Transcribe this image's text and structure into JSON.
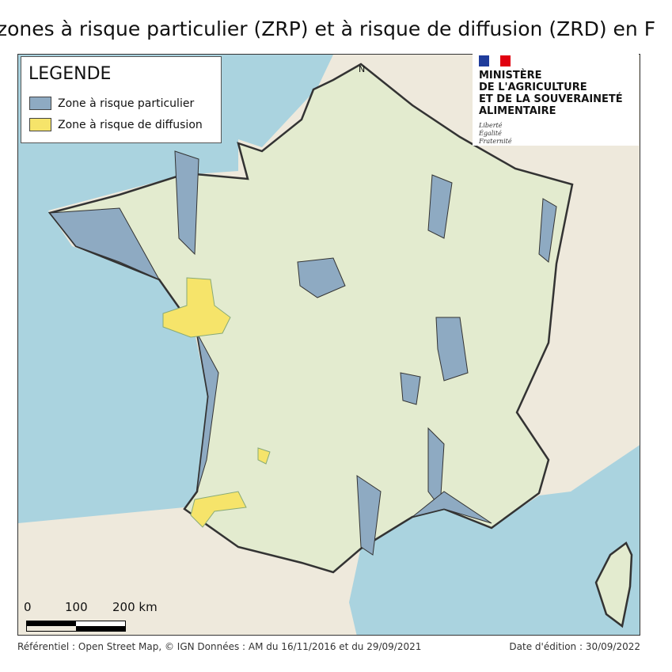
{
  "title": "zones à risque particulier (ZRP) et à risque de diffusion (ZRD) en F",
  "legend": {
    "title": "LEGENDE",
    "items": [
      {
        "label": "Zone à risque particulier",
        "color": "#8eaac2"
      },
      {
        "label": "Zone à risque de diffusion",
        "color": "#f6e46a"
      }
    ]
  },
  "north_label": "N",
  "logo": {
    "lines": [
      "MINISTÈRE",
      "DE L'AGRICULTURE",
      "ET DE LA SOUVERAINETÉ",
      "ALIMENTAIRE"
    ],
    "motto": [
      "Liberté",
      "Égalité",
      "Fraternité"
    ]
  },
  "scale": {
    "labels": [
      "0",
      "100",
      "200 km"
    ]
  },
  "footer": {
    "source": "Référentiel : Open Street Map, © IGN  Données : AM du 16/11/2016 et du 29/09/2021",
    "date": "Date d'édition : 30/09/2022"
  },
  "colors": {
    "sea": "#aad3df",
    "land": "#eee9dc",
    "france": "#e3ebcf",
    "border": "#333333"
  }
}
